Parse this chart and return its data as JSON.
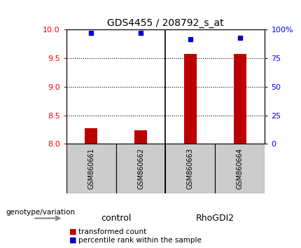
{
  "title": "GDS4455 / 208792_s_at",
  "samples": [
    "GSM860661",
    "GSM860662",
    "GSM860663",
    "GSM860664"
  ],
  "transformed_counts": [
    8.27,
    8.24,
    9.57,
    9.58
  ],
  "percentile_ranks": [
    97,
    97,
    92,
    93
  ],
  "groups": [
    "control",
    "control",
    "RhoGDI2",
    "RhoGDI2"
  ],
  "ylim_left": [
    8,
    10
  ],
  "ylim_right": [
    0,
    100
  ],
  "yticks_left": [
    8,
    8.5,
    9,
    9.5,
    10
  ],
  "yticks_right": [
    0,
    25,
    50,
    75,
    100
  ],
  "bar_color": "#bb0000",
  "dot_color": "#0000cc",
  "group_colors": {
    "control": "#ccffcc",
    "RhoGDI2": "#44dd44"
  },
  "sample_box_color": "#cccccc",
  "legend_bar_label": "transformed count",
  "legend_dot_label": "percentile rank within the sample",
  "genotype_label": "genotype/variation"
}
